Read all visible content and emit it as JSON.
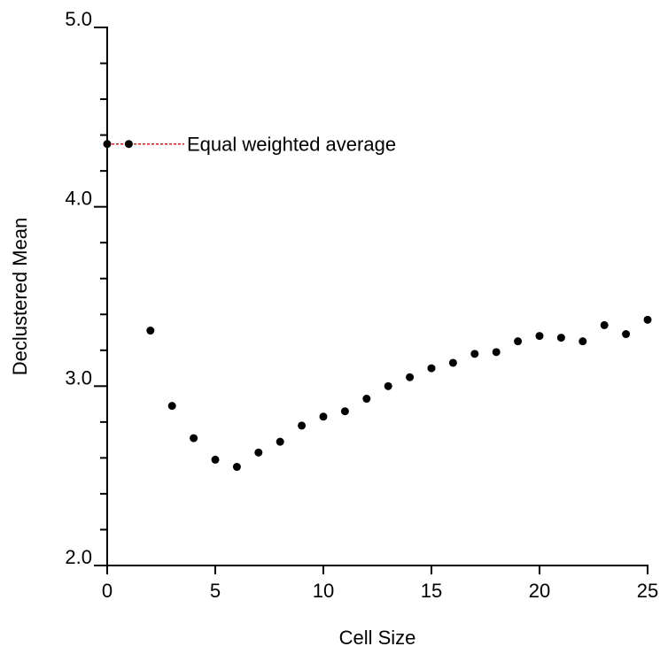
{
  "chart_data": {
    "type": "scatter",
    "x_label": "Cell Size",
    "y_label": "Declustered Mean",
    "annotation": "Equal weighted average",
    "annotation_color": "#e8141c",
    "x": [
      0,
      1,
      2,
      3,
      4,
      5,
      6,
      7,
      8,
      9,
      10,
      11,
      12,
      13,
      14,
      15,
      16,
      17,
      18,
      19,
      20,
      21,
      22,
      23,
      24,
      25
    ],
    "values": [
      4.35,
      4.35,
      3.31,
      2.89,
      2.71,
      2.59,
      2.55,
      2.63,
      2.69,
      2.78,
      2.83,
      2.86,
      2.93,
      3.0,
      3.05,
      3.1,
      3.13,
      3.18,
      3.19,
      3.25,
      3.28,
      3.27,
      3.25,
      3.34,
      3.29,
      3.37
    ],
    "color": "#000000",
    "xlim": [
      0,
      25
    ],
    "xticks": [
      0,
      5,
      10,
      15,
      20,
      25
    ],
    "ylim": [
      2,
      5
    ],
    "yticks": [
      {
        "value": 2,
        "label": "2.0"
      },
      {
        "value": 3,
        "label": "3.0"
      },
      {
        "value": 4,
        "label": "4.0"
      },
      {
        "value": 5,
        "label": "5.0"
      }
    ],
    "yminorticks": [
      2.2,
      2.4,
      2.6,
      2.8,
      3.2,
      3.4,
      3.6,
      3.8,
      4.2,
      4.4,
      4.6,
      4.8
    ]
  }
}
